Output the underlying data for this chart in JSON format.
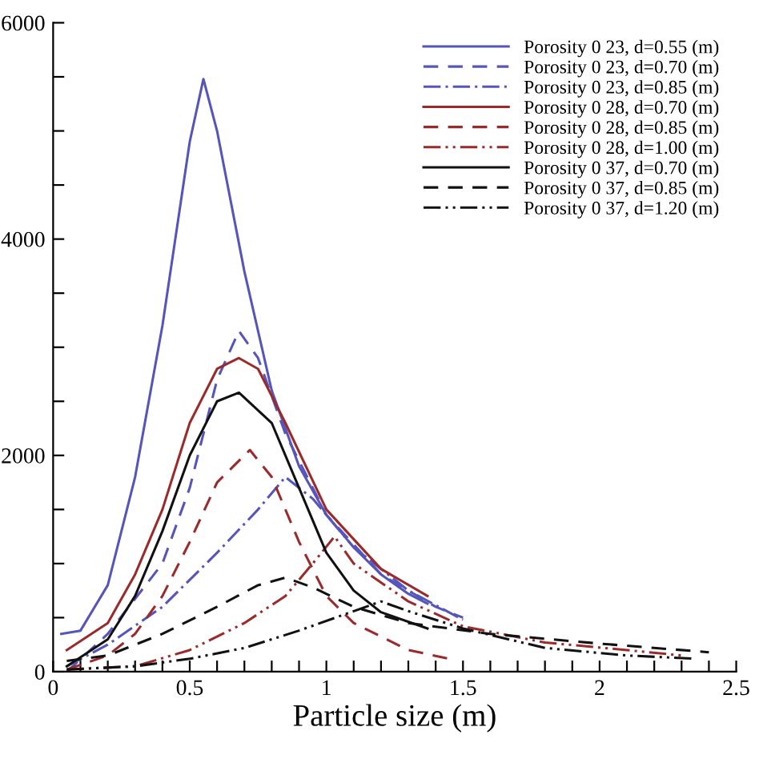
{
  "chart_data": {
    "type": "line",
    "xlabel": "Particle size (m)",
    "xlim": [
      0,
      2.5
    ],
    "xticks": [
      0,
      {
        "value": 0.1,
        "label": null
      },
      {
        "value": 0.2,
        "label": null
      },
      {
        "value": 0.3,
        "label": null
      },
      {
        "value": 0.4,
        "label": null
      },
      0.5,
      {
        "value": 0.6,
        "label": null
      },
      {
        "value": 0.7,
        "label": null
      },
      {
        "value": 0.8,
        "label": null
      },
      {
        "value": 0.9,
        "label": null
      },
      1,
      {
        "value": 1.1,
        "label": null
      },
      {
        "value": 1.2,
        "label": null
      },
      {
        "value": 1.3,
        "label": null
      },
      {
        "value": 1.4,
        "label": null
      },
      1.5,
      {
        "value": 1.6,
        "label": null
      },
      {
        "value": 1.7,
        "label": null
      },
      {
        "value": 1.8,
        "label": null
      },
      {
        "value": 1.9,
        "label": null
      },
      2,
      {
        "value": 2.1,
        "label": null
      },
      {
        "value": 2.2,
        "label": null
      },
      {
        "value": 2.3,
        "label": null
      },
      {
        "value": 2.4,
        "label": null
      },
      2.5
    ],
    "ylim": [
      0,
      6000
    ],
    "yticks": [
      0,
      {
        "value": 500,
        "label": null
      },
      {
        "value": 1000,
        "label": null
      },
      {
        "value": 1500,
        "label": null
      },
      2000,
      {
        "value": 2500,
        "label": null
      },
      {
        "value": 3000,
        "label": null
      },
      {
        "value": 3500,
        "label": null
      },
      4000,
      {
        "value": 4500,
        "label": null
      },
      {
        "value": 5000,
        "label": null
      },
      {
        "value": 5500,
        "label": null
      },
      6000
    ],
    "legend": "top right",
    "grid": false,
    "marker": "none",
    "series": [
      {
        "name": "Porosity 0 23, d=0.55 (m)",
        "color": "#5555bb",
        "line_style": "solid",
        "x": [
          0.03,
          0.1,
          0.2,
          0.3,
          0.4,
          0.5,
          0.55,
          0.6,
          0.7,
          0.8,
          0.9,
          1.0,
          1.1,
          1.2,
          1.3,
          1.37
        ],
        "values": [
          350,
          380,
          800,
          1800,
          3200,
          4900,
          5480,
          5000,
          3700,
          2600,
          1900,
          1450,
          1150,
          900,
          720,
          630
        ]
      },
      {
        "name": "Porosity 0 23, d=0.70 (m)",
        "color": "#5555bb",
        "line_style": "dashed",
        "x": [
          0.05,
          0.2,
          0.4,
          0.5,
          0.6,
          0.68,
          0.75,
          0.85,
          1.0,
          1.2,
          1.4,
          1.5
        ],
        "values": [
          0,
          350,
          1000,
          1700,
          2700,
          3150,
          2900,
          2200,
          1450,
          900,
          600,
          500
        ]
      },
      {
        "name": "Porosity 0 23, d=0.85 (m)",
        "color": "#5555bb",
        "line_style": "dashdot",
        "x": [
          0.05,
          0.2,
          0.4,
          0.6,
          0.75,
          0.85,
          0.95,
          1.1,
          1.3,
          1.5
        ],
        "values": [
          50,
          250,
          600,
          1100,
          1500,
          1800,
          1600,
          1150,
          750,
          480
        ]
      },
      {
        "name": "Porosity 0 28, d=0.70 (m)",
        "color": "#9b2a2a",
        "line_style": "solid",
        "x": [
          0.05,
          0.2,
          0.3,
          0.4,
          0.5,
          0.6,
          0.68,
          0.75,
          0.85,
          1.0,
          1.2,
          1.37
        ],
        "values": [
          200,
          450,
          900,
          1500,
          2300,
          2800,
          2900,
          2800,
          2300,
          1500,
          950,
          700
        ]
      },
      {
        "name": "Porosity 0 28, d=0.85 (m)",
        "color": "#9b2a2a",
        "line_style": "dashed",
        "x": [
          0.05,
          0.2,
          0.3,
          0.4,
          0.5,
          0.6,
          0.72,
          0.8,
          0.9,
          1.0,
          1.1,
          1.3,
          1.45
        ],
        "values": [
          20,
          150,
          350,
          700,
          1200,
          1750,
          2050,
          1800,
          1200,
          700,
          450,
          200,
          120
        ]
      },
      {
        "name": "Porosity 0 28, d=1.00 (m)",
        "color": "#9b2a2a",
        "line_style": "dashdotdot",
        "x": [
          0.05,
          0.3,
          0.5,
          0.7,
          0.85,
          0.95,
          1.03,
          1.1,
          1.3,
          1.5,
          1.8,
          2.1,
          2.3
        ],
        "values": [
          20,
          50,
          200,
          450,
          700,
          1000,
          1250,
          1000,
          650,
          420,
          270,
          200,
          150
        ]
      },
      {
        "name": "Porosity 0 37, d=0.70 (m)",
        "color": "#111111",
        "line_style": "solid",
        "x": [
          0.05,
          0.2,
          0.3,
          0.4,
          0.5,
          0.6,
          0.68,
          0.8,
          0.9,
          1.0,
          1.1,
          1.2,
          1.37
        ],
        "values": [
          50,
          300,
          700,
          1300,
          2000,
          2500,
          2580,
          2300,
          1700,
          1100,
          750,
          550,
          400
        ]
      },
      {
        "name": "Porosity 0 37, d=0.85 (m)",
        "color": "#111111",
        "line_style": "dashed",
        "x": [
          0.05,
          0.2,
          0.4,
          0.6,
          0.75,
          0.85,
          0.95,
          1.1,
          1.3,
          1.6,
          2.0,
          2.4
        ],
        "values": [
          100,
          150,
          350,
          600,
          800,
          870,
          780,
          600,
          450,
          350,
          260,
          180
        ]
      },
      {
        "name": "Porosity 0 37, d=1.20 (m)",
        "color": "#111111",
        "line_style": "dashdotdot",
        "x": [
          0.05,
          0.3,
          0.5,
          0.7,
          0.9,
          1.1,
          1.2,
          1.3,
          1.5,
          1.8,
          2.1,
          2.35
        ],
        "values": [
          20,
          50,
          120,
          220,
          380,
          560,
          650,
          560,
          400,
          220,
          150,
          120
        ]
      }
    ]
  }
}
